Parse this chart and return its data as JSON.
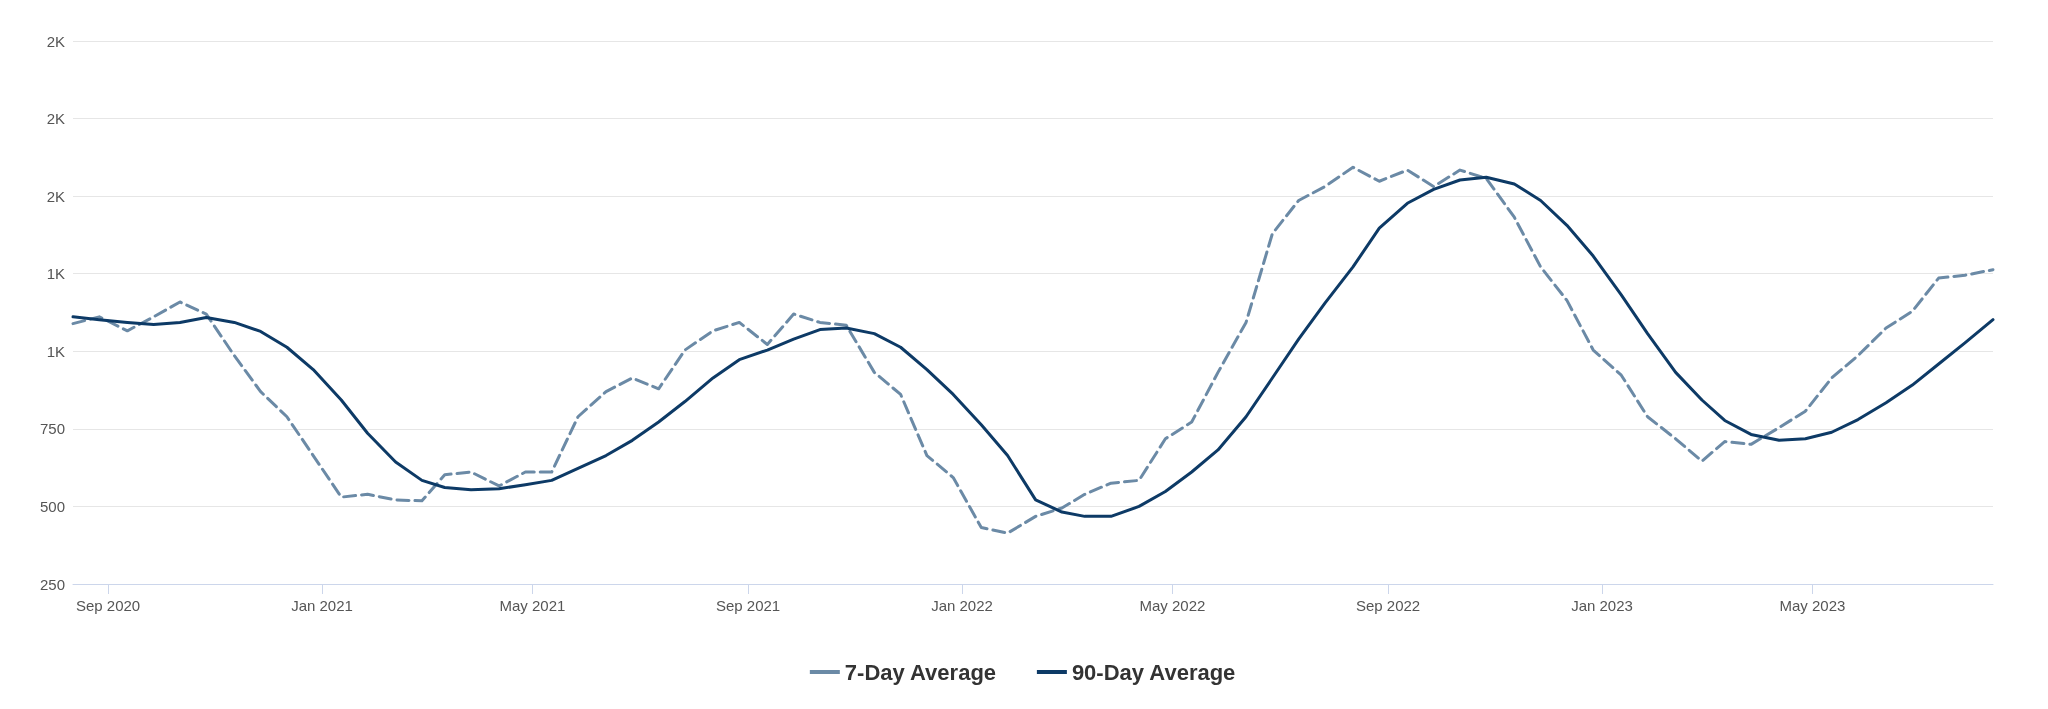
{
  "chart_data": {
    "type": "line",
    "x": [
      "2020-08-12",
      "2020-08-27",
      "2020-09-12",
      "2020-09-27",
      "2020-10-12",
      "2020-10-27",
      "2020-11-12",
      "2020-11-27",
      "2020-12-12",
      "2020-12-27",
      "2021-01-12",
      "2021-01-27",
      "2021-02-12",
      "2021-02-27",
      "2021-03-12",
      "2021-03-27",
      "2021-04-12",
      "2021-04-27",
      "2021-05-12",
      "2021-05-27",
      "2021-06-12",
      "2021-06-27",
      "2021-07-12",
      "2021-07-27",
      "2021-08-12",
      "2021-08-27",
      "2021-09-12",
      "2021-09-27",
      "2021-10-12",
      "2021-10-27",
      "2021-11-12",
      "2021-11-27",
      "2021-12-12",
      "2021-12-27",
      "2022-01-12",
      "2022-01-27",
      "2022-02-12",
      "2022-02-27",
      "2022-03-12",
      "2022-03-27",
      "2022-04-12",
      "2022-04-27",
      "2022-05-12",
      "2022-05-27",
      "2022-06-12",
      "2022-06-27",
      "2022-07-12",
      "2022-07-27",
      "2022-08-12",
      "2022-08-27",
      "2022-09-12",
      "2022-09-27",
      "2022-10-12",
      "2022-10-27",
      "2022-11-12",
      "2022-11-27",
      "2022-12-12",
      "2022-12-27",
      "2023-01-12",
      "2023-01-27",
      "2023-02-12",
      "2023-02-27",
      "2023-03-12",
      "2023-03-27",
      "2023-04-12",
      "2023-04-27",
      "2023-05-12",
      "2023-05-27",
      "2023-06-12",
      "2023-06-27",
      "2023-07-12",
      "2023-07-27",
      "2023-08-12"
    ],
    "series": [
      {
        "name": "7-Day Average",
        "color": "#6b8aa6",
        "line_style": "dashed",
        "values": [
          1089,
          1111,
          1066,
          1111,
          1159,
          1120,
          986,
          870,
          789,
          664,
          530,
          539,
          521,
          518,
          602,
          611,
          566,
          611,
          611,
          789,
          870,
          914,
          879,
          1004,
          1066,
          1093,
          1022,
          1120,
          1093,
          1084,
          932,
          861,
          664,
          593,
          432,
          414,
          468,
          495,
          539,
          575,
          584,
          718,
          772,
          932,
          1093,
          1379,
          1486,
          1531,
          1593,
          1548,
          1584,
          1531,
          1584,
          1557,
          1432,
          1272,
          1164,
          1004,
          923,
          789,
          718,
          646,
          709,
          700,
          754,
          807,
          914,
          986,
          1075,
          1129,
          1236,
          1245,
          1263
        ]
      },
      {
        "name": "90-Day Average",
        "color": "#0d3a66",
        "line_style": "solid",
        "values": [
          1111,
          1102,
          1093,
          1086,
          1093,
          1109,
          1093,
          1064,
          1013,
          941,
          843,
          736,
          643,
          584,
          561,
          554,
          557,
          570,
          584,
          623,
          664,
          713,
          772,
          838,
          914,
          973,
          1004,
          1039,
          1070,
          1075,
          1057,
          1013,
          941,
          861,
          763,
          664,
          521,
          482,
          468,
          468,
          500,
          548,
          611,
          682,
          789,
          914,
          1039,
          1155,
          1272,
          1397,
          1477,
          1522,
          1552,
          1561,
          1539,
          1486,
          1406,
          1307,
          1182,
          1057,
          932,
          843,
          777,
          732,
          713,
          718,
          739,
          780,
          834,
          891,
          959,
          1027,
          1102
        ]
      }
    ],
    "xlim": [
      "2020-08-12",
      "2023-08-12"
    ],
    "xticks": [
      {
        "value": "2020-09-01",
        "label": "Sep 2020"
      },
      {
        "value": "2021-01-01",
        "label": "Jan 2021"
      },
      {
        "value": "2021-05-01",
        "label": "May 2021"
      },
      {
        "value": "2021-09-01",
        "label": "Sep 2021"
      },
      {
        "value": "2022-01-01",
        "label": "Jan 2022"
      },
      {
        "value": "2022-05-01",
        "label": "May 2022"
      },
      {
        "value": "2022-09-01",
        "label": "Sep 2022"
      },
      {
        "value": "2023-01-01",
        "label": "Jan 2023"
      },
      {
        "value": "2023-05-01",
        "label": "May 2023"
      }
    ],
    "ylim": [
      250,
      2000
    ],
    "yticks": [
      250,
      500,
      750,
      {
        "value": 1000,
        "label": "1K"
      },
      {
        "value": 1250,
        "label": "1K"
      },
      {
        "value": 1500,
        "label": "2K"
      },
      {
        "value": 1750,
        "label": "2K"
      },
      {
        "value": 2000,
        "label": "2K"
      }
    ],
    "grid": "y",
    "legend": "bottom"
  }
}
